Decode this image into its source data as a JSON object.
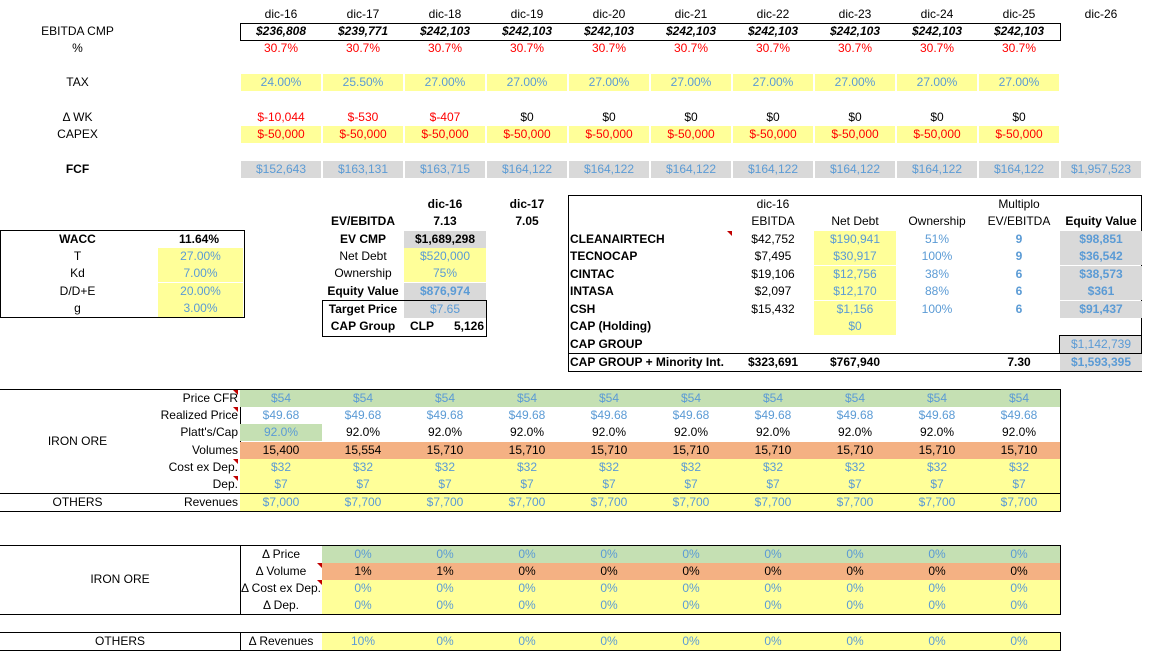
{
  "years": [
    "dic-16",
    "dic-17",
    "dic-18",
    "dic-19",
    "dic-20",
    "dic-21",
    "dic-22",
    "dic-23",
    "dic-24",
    "dic-25",
    "dic-26"
  ],
  "top": {
    "ebitda": {
      "label": "EBITDA CMP",
      "values": [
        "$236,808",
        "$239,771",
        "$242,103",
        "$242,103",
        "$242,103",
        "$242,103",
        "$242,103",
        "$242,103",
        "$242,103",
        "$242,103"
      ]
    },
    "pct": {
      "label": "%",
      "values": [
        "30.7%",
        "30.7%",
        "30.7%",
        "30.7%",
        "30.7%",
        "30.7%",
        "30.7%",
        "30.7%",
        "30.7%",
        "30.7%"
      ]
    },
    "tax": {
      "label": "TAX",
      "values": [
        "24.00%",
        "25.50%",
        "27.00%",
        "27.00%",
        "27.00%",
        "27.00%",
        "27.00%",
        "27.00%",
        "27.00%",
        "27.00%"
      ]
    },
    "dwk": {
      "label": "Δ WK",
      "values": [
        "$-10,044",
        "$-530",
        "$-407",
        "$0",
        "$0",
        "$0",
        "$0",
        "$0",
        "$0",
        "$0"
      ]
    },
    "capex": {
      "label": "CAPEX",
      "values": [
        "$-50,000",
        "$-50,000",
        "$-50,000",
        "$-50,000",
        "$-50,000",
        "$-50,000",
        "$-50,000",
        "$-50,000",
        "$-50,000",
        "$-50,000"
      ]
    },
    "fcf": {
      "label": "FCF",
      "values": [
        "$152,643",
        "$163,131",
        "$163,715",
        "$164,122",
        "$164,122",
        "$164,122",
        "$164,122",
        "$164,122",
        "$164,122",
        "$164,122",
        "$1,957,523"
      ]
    }
  },
  "wacc": {
    "title_label": "WACC",
    "title_value": "11.64%",
    "rows": [
      {
        "label": "T",
        "value": "27.00%"
      },
      {
        "label": "Kd",
        "value": "7.00%"
      },
      {
        "label": "D/D+E",
        "value": "20.00%"
      },
      {
        "label": "g",
        "value": "3.00%"
      }
    ]
  },
  "valuation": {
    "col1": "dic-16",
    "col2": "dic-17",
    "ev_ebitda": {
      "label": "EV/EBITDA",
      "v1": "7.13",
      "v2": "7.05"
    },
    "ev_cmp": {
      "label": "EV CMP",
      "value": "$1,689,298"
    },
    "net_debt": {
      "label": "Net Debt",
      "value": "$520,000"
    },
    "ownership": {
      "label": "Ownership",
      "value": "75%"
    },
    "equity_value": {
      "label": "Equity Value",
      "value": "$876,974"
    },
    "target_price": {
      "label": "Target Price",
      "value": "$7.65"
    },
    "cap_group": {
      "label": "CAP Group",
      "currency": "CLP",
      "value": "5,126"
    }
  },
  "subsidiaries": {
    "header_top": {
      "year": "dic-16",
      "multiplo": "Multiplo"
    },
    "headers": [
      "EBITDA",
      "Net Debt",
      "Ownership",
      "EV/EBITDA",
      "Equity Value"
    ],
    "rows": [
      {
        "name": "CLEANAIRTECH",
        "ebitda": "$42,752",
        "net_debt": "$190,941",
        "ownership": "51%",
        "multiple": "9",
        "equity": "$98,851"
      },
      {
        "name": "TECNOCAP",
        "ebitda": "$7,495",
        "net_debt": "$30,917",
        "ownership": "100%",
        "multiple": "9",
        "equity": "$36,542"
      },
      {
        "name": "CINTAC",
        "ebitda": "$19,106",
        "net_debt": "$12,756",
        "ownership": "38%",
        "multiple": "6",
        "equity": "$38,573"
      },
      {
        "name": "INTASA",
        "ebitda": "$2,097",
        "net_debt": "$12,170",
        "ownership": "88%",
        "multiple": "6",
        "equity": "$361"
      },
      {
        "name": "CSH",
        "ebitda": "$15,432",
        "net_debt": "$1,156",
        "ownership": "100%",
        "multiple": "6",
        "equity": "$91,437"
      }
    ],
    "cap_holding": {
      "name": "CAP (Holding)",
      "net_debt": "$0"
    },
    "cap_group": {
      "name": "CAP GROUP",
      "equity": "$1,142,739"
    },
    "total": {
      "name": "CAP GROUP + Minority Int.",
      "ebitda": "$323,691",
      "net_debt": "$767,940",
      "multiple": "7.30",
      "equity": "$1,593,395"
    }
  },
  "ops": {
    "iron_ore_label": "IRON ORE",
    "others_label": "OTHERS",
    "price_cfr": {
      "label": "Price CFR",
      "values": [
        "$54",
        "$54",
        "$54",
        "$54",
        "$54",
        "$54",
        "$54",
        "$54",
        "$54",
        "$54"
      ]
    },
    "realized": {
      "label": "Realized Price",
      "values": [
        "$49.68",
        "$49.68",
        "$49.68",
        "$49.68",
        "$49.68",
        "$49.68",
        "$49.68",
        "$49.68",
        "$49.68",
        "$49.68"
      ]
    },
    "platts": {
      "label": "Platt's/Cap",
      "values": [
        "92.0%",
        "92.0%",
        "92.0%",
        "92.0%",
        "92.0%",
        "92.0%",
        "92.0%",
        "92.0%",
        "92.0%",
        "92.0%"
      ]
    },
    "volumes": {
      "label": "Volumes",
      "values": [
        "15,400",
        "15,554",
        "15,710",
        "15,710",
        "15,710",
        "15,710",
        "15,710",
        "15,710",
        "15,710",
        "15,710"
      ]
    },
    "cost": {
      "label": "Cost ex Dep.",
      "values": [
        "$32",
        "$32",
        "$32",
        "$32",
        "$32",
        "$32",
        "$32",
        "$32",
        "$32",
        "$32"
      ]
    },
    "dep": {
      "label": "Dep.",
      "values": [
        "$7",
        "$7",
        "$7",
        "$7",
        "$7",
        "$7",
        "$7",
        "$7",
        "$7",
        "$7"
      ]
    },
    "revenues": {
      "label": "Revenues",
      "values": [
        "$7,000",
        "$7,700",
        "$7,700",
        "$7,700",
        "$7,700",
        "$7,700",
        "$7,700",
        "$7,700",
        "$7,700",
        "$7,700"
      ]
    }
  },
  "sens": {
    "iron_ore_label": "IRON ORE",
    "others_label": "OTHERS",
    "dprice": {
      "label": "Δ Price",
      "values": [
        "0%",
        "0%",
        "0%",
        "0%",
        "0%",
        "0%",
        "0%",
        "0%",
        "0%"
      ]
    },
    "dvolume": {
      "label": "Δ Volume",
      "values": [
        "1%",
        "1%",
        "0%",
        "0%",
        "0%",
        "0%",
        "0%",
        "0%",
        "0%"
      ]
    },
    "dcost": {
      "label": "Δ Cost ex Dep.",
      "values": [
        "0%",
        "0%",
        "0%",
        "0%",
        "0%",
        "0%",
        "0%",
        "0%",
        "0%"
      ]
    },
    "ddep": {
      "label": "Δ Dep.",
      "values": [
        "0%",
        "0%",
        "0%",
        "0%",
        "0%",
        "0%",
        "0%",
        "0%",
        "0%"
      ]
    },
    "drev": {
      "label": "Δ Revenues",
      "values": [
        "10%",
        "0%",
        "0%",
        "0%",
        "0%",
        "0%",
        "0%",
        "0%",
        "0%"
      ]
    }
  },
  "colors": {
    "red": "#ff0000",
    "blue": "#5b9bd5",
    "yellow": "#ffff99",
    "gray": "#d9d9d9",
    "green": "#c5e0b3",
    "orange": "#f4b183"
  }
}
